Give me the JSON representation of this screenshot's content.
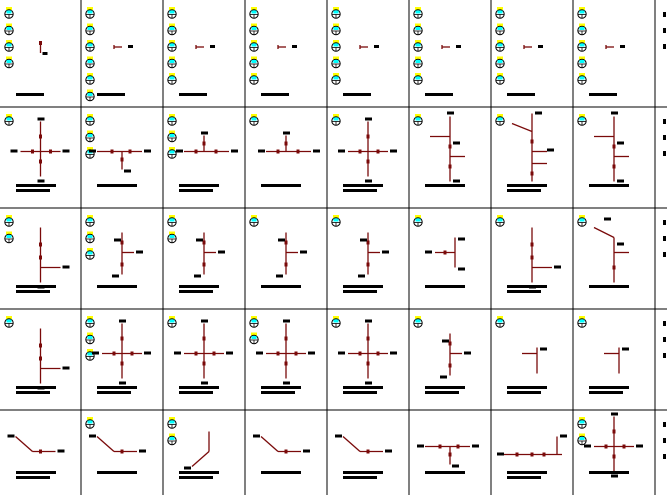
{
  "colors": {
    "pipe": "#7a0a0a",
    "grid": "#000000",
    "icon_cap": "#ffff00",
    "icon_fill": "#00ffff",
    "label": "#000000"
  },
  "rows": [
    {
      "cells": [
        {
          "icons": 4,
          "shape": "stub-up"
        },
        {
          "icons": 6,
          "shape": "stub-right"
        },
        {
          "icons": 5,
          "shape": "stub-right"
        },
        {
          "icons": 5,
          "shape": "stub-right"
        },
        {
          "icons": 5,
          "shape": "stub-right"
        },
        {
          "icons": 5,
          "shape": "stub-right"
        },
        {
          "icons": 5,
          "shape": "stub-right"
        },
        {
          "icons": 5,
          "shape": "stub-right"
        }
      ]
    },
    {
      "cells": [
        {
          "icons": 1,
          "shape": "cross"
        },
        {
          "icons": 3,
          "shape": "tee-down"
        },
        {
          "icons": 3,
          "shape": "tee-up"
        },
        {
          "icons": 1,
          "shape": "tee-up"
        },
        {
          "icons": 1,
          "shape": "cross"
        },
        {
          "icons": 1,
          "shape": "branch-left"
        },
        {
          "icons": 1,
          "shape": "branch-double"
        },
        {
          "icons": 1,
          "shape": "branch-left"
        }
      ]
    },
    {
      "cells": [
        {
          "icons": 2,
          "shape": "vertical-right"
        },
        {
          "icons": 3,
          "shape": "vertical-left"
        },
        {
          "icons": 2,
          "shape": "vertical-left"
        },
        {
          "icons": 1,
          "shape": "vertical-left"
        },
        {
          "icons": 1,
          "shape": "vertical-left"
        },
        {
          "icons": 1,
          "shape": "elbow"
        },
        {
          "icons": 1,
          "shape": "vertical-right"
        },
        {
          "icons": 1,
          "shape": "diagonal-down"
        }
      ]
    },
    {
      "cells": [
        {
          "icons": 1,
          "shape": "vertical-right"
        },
        {
          "icons": 3,
          "shape": "cross"
        },
        {
          "icons": 1,
          "shape": "cross"
        },
        {
          "icons": 2,
          "shape": "cross"
        },
        {
          "icons": 1,
          "shape": "cross"
        },
        {
          "icons": 1,
          "shape": "vertical-left"
        },
        {
          "icons": 1,
          "shape": "elbow-small"
        },
        {
          "icons": 1,
          "shape": "elbow-small"
        }
      ]
    },
    {
      "cells": [
        {
          "icons": 0,
          "shape": "diagonal"
        },
        {
          "icons": 1,
          "shape": "diagonal"
        },
        {
          "icons": 2,
          "shape": "diagonal-up"
        },
        {
          "icons": 0,
          "shape": "diagonal"
        },
        {
          "icons": 0,
          "shape": "diagonal"
        },
        {
          "icons": 0,
          "shape": "tee-down"
        },
        {
          "icons": 0,
          "shape": "horizontal"
        },
        {
          "icons": 2,
          "shape": "cross"
        }
      ]
    }
  ]
}
